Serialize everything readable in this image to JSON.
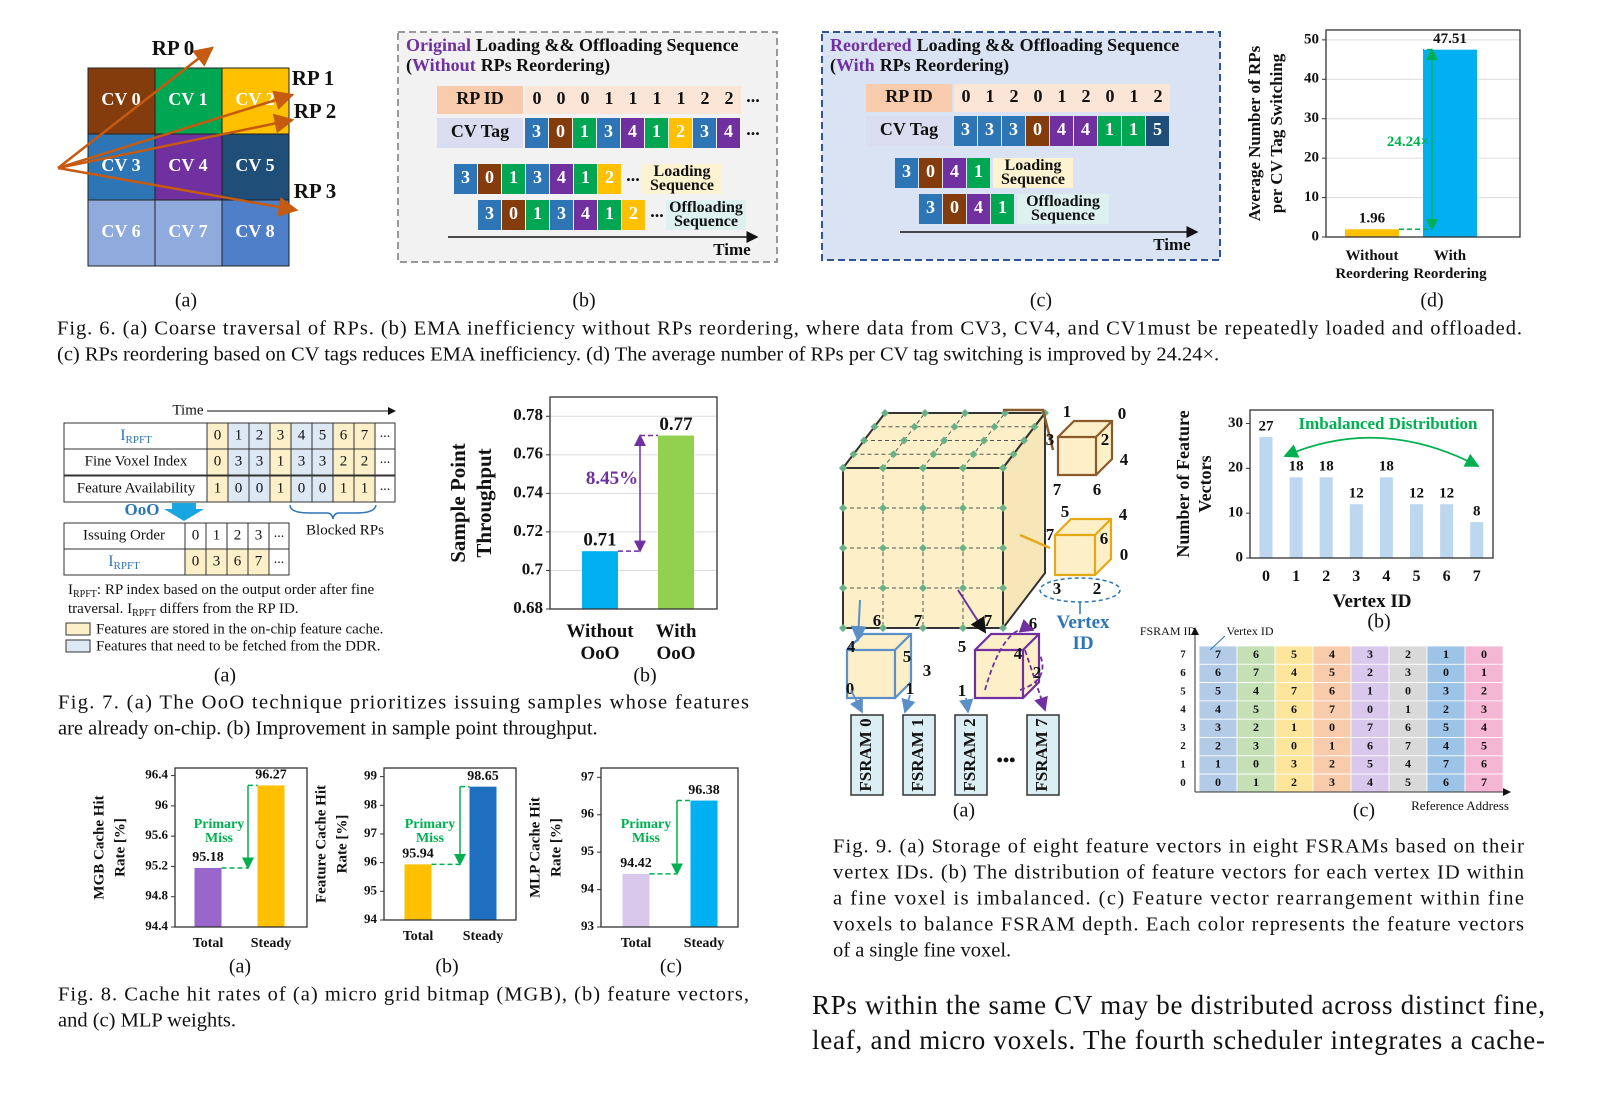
{
  "fig6": {
    "cv_colors": [
      "#843c0c",
      "#00a651",
      "#ffc000",
      "#2e75b6",
      "#7030a0",
      "#1f4e79",
      "#8faadc",
      "#8faadc",
      "#4f7fc8"
    ],
    "a": {
      "cv_labels": [
        "CV 0",
        "CV 1",
        "CV 2",
        "CV 3",
        "CV 4",
        "CV 5",
        "CV 6",
        "CV 7",
        "CV 8"
      ],
      "rp_labels": [
        "RP 0",
        "RP 1",
        "RP 2",
        "RP 3"
      ],
      "sublabel": "(a)"
    },
    "b": {
      "title": [
        "Original",
        "Loading && Offloading Sequence"
      ],
      "subtitle": [
        "(",
        "Without",
        "RPs Reordering)"
      ],
      "rp_id_label": "RP ID",
      "rp_ids": [
        0,
        0,
        0,
        1,
        1,
        1,
        1,
        2,
        2
      ],
      "cv_tag_label": "CV Tag",
      "cv_tags": [
        3,
        0,
        1,
        3,
        4,
        1,
        2,
        3,
        4
      ],
      "ellipsis": "...",
      "loading_sequence": [
        3,
        0,
        1,
        3,
        4,
        1,
        2
      ],
      "loading_label": "Loading Sequence",
      "offloading_sequence": [
        3,
        0,
        1,
        3,
        4,
        1,
        2
      ],
      "offloading_label": "Offloading Sequence",
      "time_label": "Time",
      "sublabel": "(b)"
    },
    "c": {
      "title": [
        "Reordered",
        "Loading && Offloading Sequence"
      ],
      "subtitle": [
        "(",
        "With",
        "RPs Reordering)"
      ],
      "rp_id_label": "RP ID",
      "rp_ids": [
        0,
        1,
        2,
        0,
        1,
        2,
        0,
        1,
        2
      ],
      "cv_tag_label": "CV Tag",
      "cv_tags": [
        3,
        3,
        3,
        0,
        4,
        4,
        1,
        1,
        5
      ],
      "loading_sequence": [
        3,
        0,
        4,
        1
      ],
      "loading_label": "Loading Sequence",
      "offloading_sequence": [
        3,
        0,
        4,
        1
      ],
      "offloading_label": "Offloading Sequence",
      "time_label": "Time",
      "sublabel": "(c)"
    },
    "d": {
      "type": "bar",
      "categories": [
        "Without Reordering",
        "With Reordering"
      ],
      "values": [
        1.96,
        47.51
      ],
      "colors": [
        "#ffc000",
        "#00b0f0"
      ],
      "ylim": [
        0,
        52.5
      ],
      "yticks": [
        0,
        10,
        20,
        30,
        40,
        50
      ],
      "grid": true,
      "ylabel": [
        "Average Number of RPs",
        "per CV Tag Switching"
      ],
      "annotation": "24.24×",
      "annotation_color": "#00b050",
      "sublabel": "(d)"
    },
    "caption": [
      "Fig. 6. (a) Coarse traversal of RPs. (b) EMA inefficiency without RPs reordering, where data from CV3, CV4, and CV1must be repeatedly loaded and offloaded.",
      "(c) RPs reordering based on CV tags reduces EMA inefficiency. (d) The average number of RPs per CV tag switching is improved by 24.24×."
    ]
  },
  "fig7": {
    "a": {
      "time_label": "Time",
      "irpft": [
        "I",
        "RPFT"
      ],
      "ellipsis": "...",
      "row_labels": [
        "Fine Voxel Index",
        "Feature Availability"
      ],
      "irpft_values": [
        0,
        1,
        2,
        3,
        4,
        5,
        6,
        7
      ],
      "fine_voxel_index": [
        0,
        3,
        3,
        1,
        3,
        3,
        2,
        2
      ],
      "feature_availability": [
        1,
        0,
        0,
        1,
        0,
        0,
        1,
        1
      ],
      "ooo_label": "OoO",
      "blocked_label": "Blocked RPs",
      "issuing_label": "Issuing Order",
      "issuing_order": [
        0,
        1,
        2,
        3
      ],
      "issued_irpft": [
        0,
        3,
        6,
        7
      ],
      "note_line1": [
        "I",
        "RPFT",
        ": RP index based on the output order after fine"
      ],
      "note_line2": [
        "traversal. I",
        "RPFT",
        " differs from the RP ID."
      ],
      "legend": [
        "Features are stored in the on-chip feature cache.",
        "Features that need to be fetched from the DDR."
      ],
      "sublabel": "(a)"
    },
    "b": {
      "type": "bar",
      "categories": [
        "Without OoO",
        "With OoO"
      ],
      "values": [
        0.71,
        0.77
      ],
      "colors": [
        "#00b0f0",
        "#92d050"
      ],
      "ylim": [
        0.68,
        0.79
      ],
      "yticks": [
        0.68,
        0.7,
        0.72,
        0.74,
        0.76,
        0.78
      ],
      "grid": true,
      "ylabel": [
        "Sample Point",
        "Throughput"
      ],
      "annotation": "8.45%",
      "annotation_color": "#7030a0",
      "sublabel": "(b)"
    },
    "caption": [
      "Fig. 7. (a) The OoO technique prioritizes issuing samples whose features",
      "are already on-chip. (b) Improvement in sample point throughput."
    ]
  },
  "fig8": {
    "charts": [
      {
        "type": "bar",
        "categories": [
          "Total",
          "Steady"
        ],
        "values": [
          95.18,
          96.27
        ],
        "colors": [
          "#9966cc",
          "#ffc000"
        ],
        "ylim": [
          94.4,
          96.5
        ],
        "yticks": [
          94.4,
          94.8,
          95.2,
          95.6,
          96,
          96.4
        ],
        "grid": false,
        "ylabel": [
          "MGB Cache Hit",
          "Rate [%]"
        ],
        "annotation": "Primary Miss",
        "annotation_color": "#00b050",
        "sublabel": "(a)"
      },
      {
        "type": "bar",
        "categories": [
          "Total",
          "Steady"
        ],
        "values": [
          95.94,
          98.65
        ],
        "colors": [
          "#ffc000",
          "#1f6fc0"
        ],
        "ylim": [
          94,
          99.3
        ],
        "yticks": [
          94,
          95,
          96,
          97,
          98,
          99
        ],
        "grid": false,
        "ylabel": [
          "Feature Cache Hit",
          "Rate [%]"
        ],
        "annotation": "Primary Miss",
        "annotation_color": "#00b050",
        "sublabel": "(b)"
      },
      {
        "type": "bar",
        "categories": [
          "Total",
          "Steady"
        ],
        "values": [
          94.42,
          96.38
        ],
        "colors": [
          "#d9c8ec",
          "#00b0f0"
        ],
        "ylim": [
          93,
          97.25
        ],
        "yticks": [
          93,
          94,
          95,
          96,
          97
        ],
        "grid": false,
        "ylabel": [
          "MLP Cache Hit",
          "Rate [%]"
        ],
        "annotation": "Primary Miss",
        "annotation_color": "#00b050",
        "sublabel": "(c)"
      }
    ],
    "caption": [
      "Fig. 8. Cache hit rates of (a) micro grid bitmap (MGB), (b) feature vectors,",
      "and (c) MLP weights."
    ]
  },
  "fig9": {
    "a": {
      "cube_labels": [
        [
          1,
          0,
          3,
          2,
          7,
          6,
          4
        ],
        [
          5,
          4,
          7,
          6,
          0,
          3,
          2
        ],
        [
          6,
          7,
          4,
          5,
          3,
          0,
          1
        ],
        [
          7,
          6,
          5,
          4,
          2,
          1
        ]
      ],
      "vertex_id_label": "Vertex ID",
      "fsram_labels": [
        "FSRAM 0",
        "FSRAM 1",
        "FSRAM 2",
        "FSRAM 7"
      ],
      "dots": "•••",
      "sublabel": "(a)"
    },
    "b": {
      "type": "bar",
      "categories": [
        0,
        1,
        2,
        3,
        4,
        5,
        6,
        7
      ],
      "values": [
        27,
        18,
        18,
        12,
        18,
        12,
        12,
        8
      ],
      "color": "#bdd7ee",
      "ylim": [
        0,
        33
      ],
      "yticks": [
        0,
        10,
        20,
        30
      ],
      "grid": false,
      "ylabel": [
        "Number of Feature",
        "Vectors"
      ],
      "xlabel": "Vertex ID",
      "annotation": "Imbalanced Distribution",
      "annotation_color": "#00b050",
      "sublabel": "(b)"
    },
    "c": {
      "fsram_label": "FSRAM ID",
      "vertex_label": "Vertex ID",
      "address_label": "Reference Address",
      "row_labels": [
        7,
        6,
        5,
        4,
        3,
        2,
        1,
        0
      ],
      "rows": [
        [
          7,
          6,
          5,
          4,
          3,
          2,
          1,
          0
        ],
        [
          6,
          7,
          4,
          5,
          2,
          3,
          0,
          1
        ],
        [
          5,
          4,
          7,
          6,
          1,
          0,
          3,
          2
        ],
        [
          4,
          5,
          6,
          7,
          0,
          1,
          2,
          3
        ],
        [
          3,
          2,
          1,
          0,
          7,
          6,
          5,
          4
        ],
        [
          2,
          3,
          0,
          1,
          6,
          7,
          4,
          5
        ],
        [
          1,
          0,
          3,
          2,
          5,
          4,
          7,
          6
        ],
        [
          0,
          1,
          2,
          3,
          4,
          5,
          6,
          7
        ]
      ],
      "palette": [
        "#b4cbe8",
        "#c5e0b4",
        "#fde59b",
        "#f8cbad",
        "#d9c8ec",
        "#d9d9d9",
        "#9dc3e6",
        "#f4b6d2"
      ],
      "sublabel": "(c)"
    },
    "caption": [
      "Fig. 9. (a) Storage of eight feature vectors in eight FSRAMs based on their",
      "vertex IDs. (b) The distribution of feature vectors for each vertex ID within",
      "a fine voxel is imbalanced. (c) Feature vector rearrangement within fine",
      "voxels to balance FSRAM depth. Each color represents the feature vectors",
      "of a single fine voxel."
    ]
  },
  "body": [
    "RPs within the same CV may be distributed across distinct fine,",
    "leaf, and micro voxels. The fourth scheduler integrates a cache-"
  ]
}
